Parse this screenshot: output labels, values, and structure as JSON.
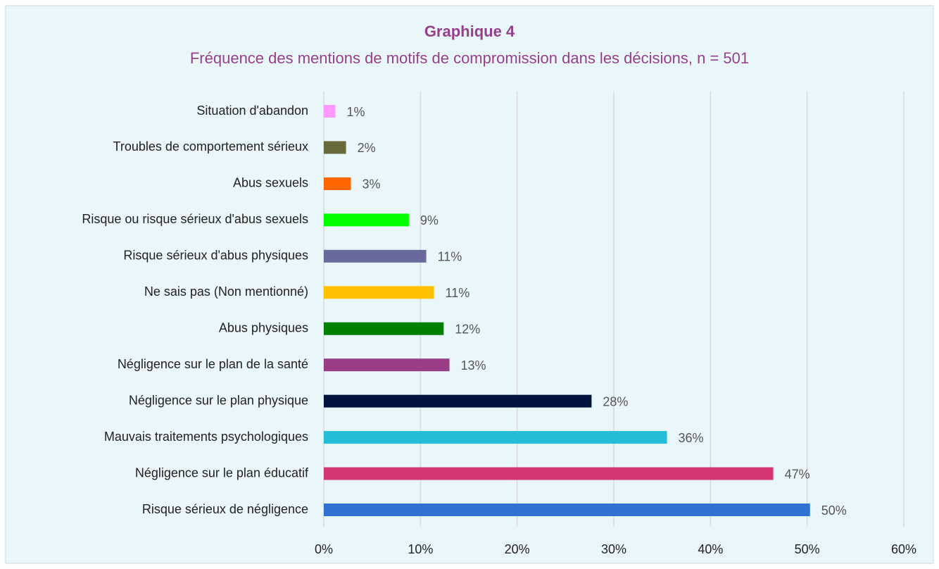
{
  "chart_data": {
    "type": "bar",
    "orientation": "horizontal",
    "title": "Graphique 4",
    "subtitle": "Fréquence des mentions de motifs de compromission dans les décisions, n = 501",
    "categories": [
      "Situation d'abandon",
      "Troubles de comportement sérieux",
      "Abus sexuels",
      "Risque ou risque sérieux d'abus sexuels",
      "Risque sérieux d'abus physiques",
      "Ne sais pas (Non mentionné)",
      "Abus physiques",
      "Négligence sur le plan de la santé",
      "Négligence sur le plan physique",
      "Mauvais traitements psychologiques",
      "Négligence sur le plan éducatif",
      "Risque sérieux de négligence"
    ],
    "values": [
      1.2,
      2.3,
      2.8,
      8.8,
      10.6,
      11.4,
      12.4,
      13.0,
      27.7,
      35.5,
      46.5,
      50.3
    ],
    "value_labels": [
      "1%",
      "2%",
      "3%",
      "9%",
      "11%",
      "11%",
      "12%",
      "13%",
      "28%",
      "36%",
      "47%",
      "50%"
    ],
    "colors": [
      "#ff99ff",
      "#676a3a",
      "#ff6600",
      "#00ff00",
      "#676a9a",
      "#ffc000",
      "#008000",
      "#993d87",
      "#00133f",
      "#24bcd6",
      "#d63575",
      "#2f72d2"
    ],
    "xlim": [
      0,
      60
    ],
    "xticks": [
      {
        "value": 0,
        "label": "0%"
      },
      {
        "value": 10,
        "label": "10%"
      },
      {
        "value": 20,
        "label": "20%"
      },
      {
        "value": 30,
        "label": "30%"
      },
      {
        "value": 40,
        "label": "40%"
      },
      {
        "value": 50,
        "label": "50%"
      },
      {
        "value": 60,
        "label": "60%"
      }
    ],
    "grid": true
  }
}
